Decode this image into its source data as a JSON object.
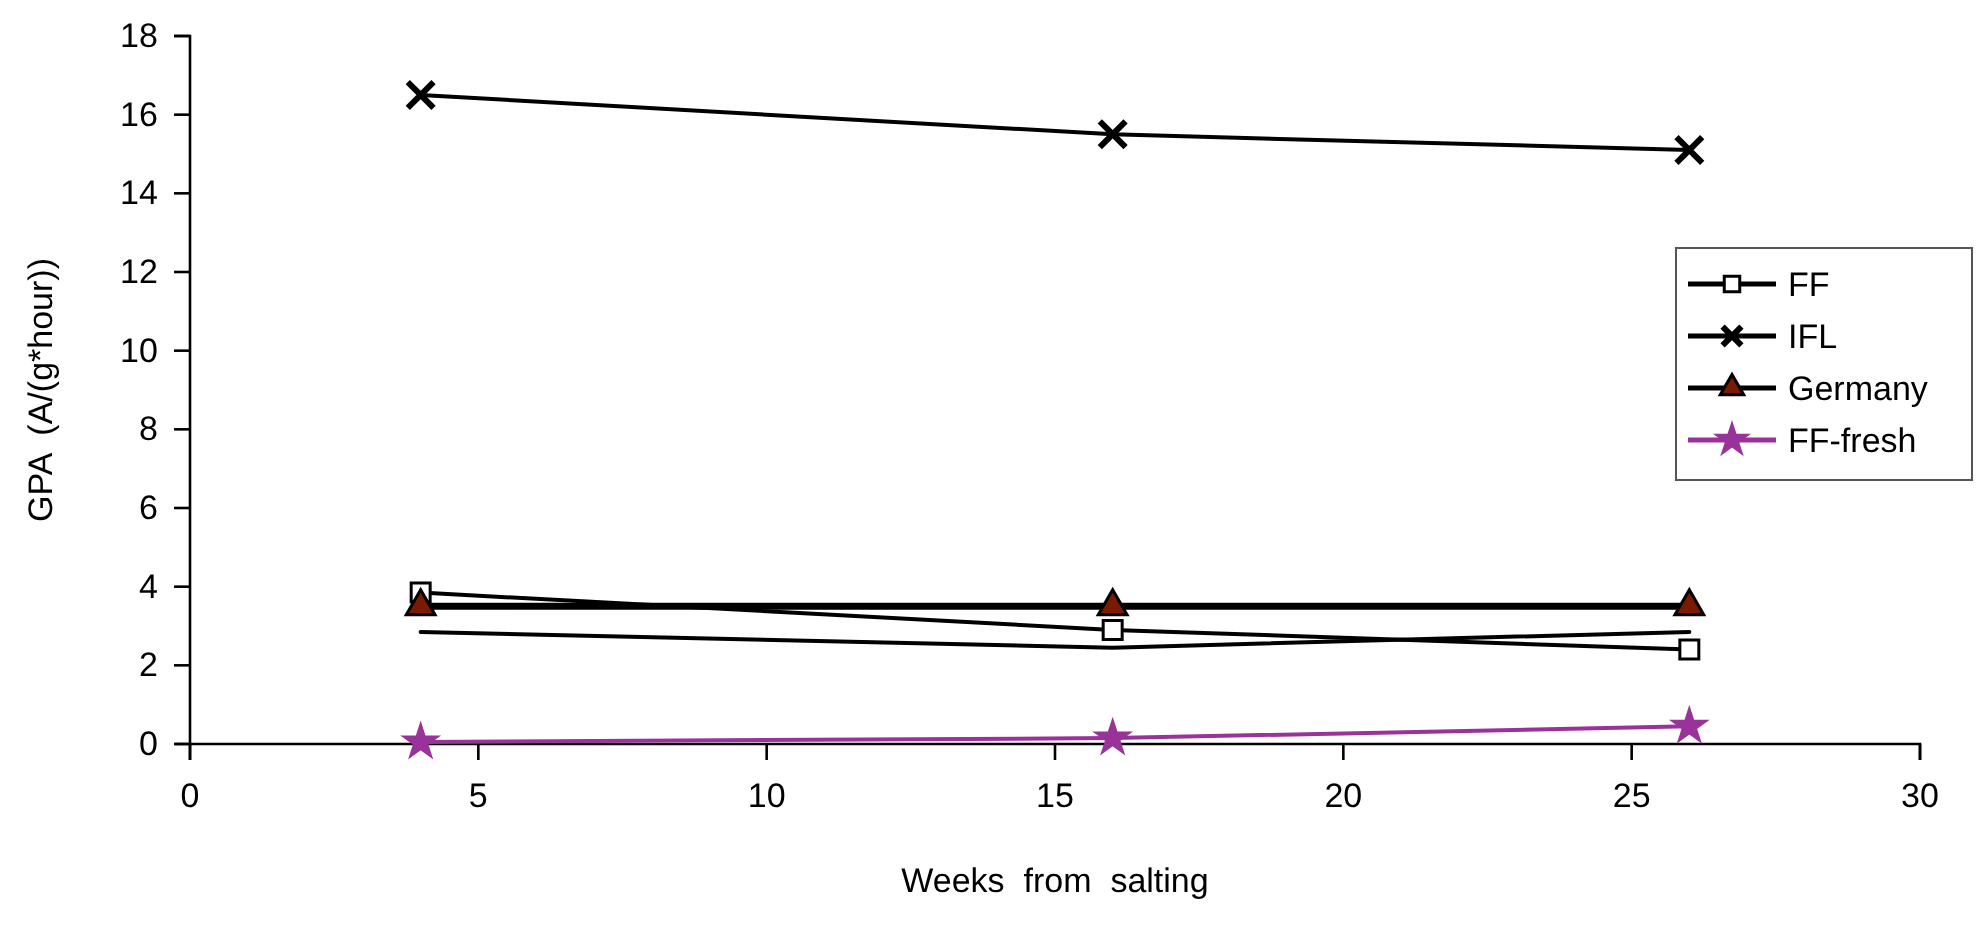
{
  "chart_data": {
    "type": "line",
    "xlabel": "Weeks  from  salting",
    "ylabel": "GPA  (A/(g*hour))",
    "xlim": [
      0,
      30
    ],
    "xticks": [
      0,
      5,
      10,
      15,
      20,
      25,
      30
    ],
    "ylim": [
      0,
      18
    ],
    "yticks": [
      0,
      2,
      4,
      6,
      8,
      10,
      12,
      14,
      16,
      18
    ],
    "grid": false,
    "legend": "right",
    "line_style": "solid",
    "series": [
      {
        "name": "FF",
        "color": "#000000",
        "marker": "square",
        "x": [
          4,
          16,
          26
        ],
        "values": [
          3.85,
          2.9,
          2.4
        ]
      },
      {
        "name": "IFL",
        "color": "#000000",
        "marker": "cross",
        "x": [
          4,
          16,
          26
        ],
        "values": [
          16.5,
          15.5,
          15.1
        ]
      },
      {
        "color": "#000000",
        "marker": "none",
        "x": [
          4,
          16,
          26
        ],
        "values": [
          2.85,
          2.45,
          2.85
        ]
      },
      {
        "name": "Germany",
        "color": "#000000",
        "marker": "triangle",
        "x": [
          4,
          16,
          26
        ],
        "values": [
          3.5,
          3.5,
          3.5
        ]
      },
      {
        "name": "FF-fresh",
        "color": "#993399",
        "marker": "star",
        "x": [
          4,
          16,
          26
        ],
        "values": [
          0.05,
          0.15,
          0.45
        ]
      }
    ]
  }
}
